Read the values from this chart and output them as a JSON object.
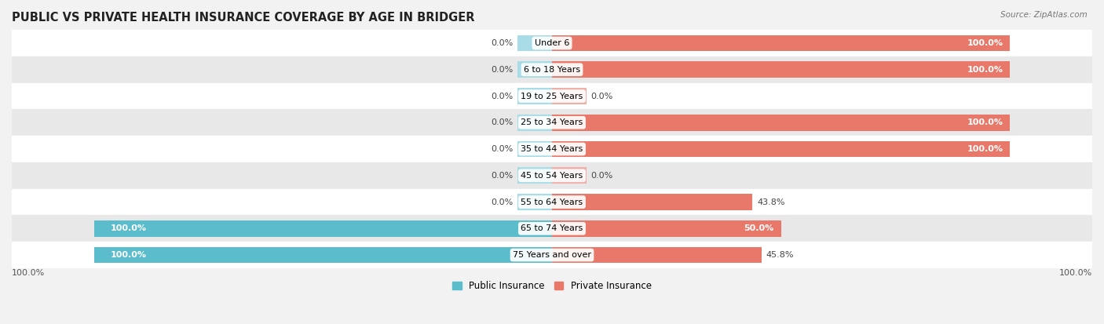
{
  "title": "PUBLIC VS PRIVATE HEALTH INSURANCE COVERAGE BY AGE IN BRIDGER",
  "source": "Source: ZipAtlas.com",
  "categories": [
    "Under 6",
    "6 to 18 Years",
    "19 to 25 Years",
    "25 to 34 Years",
    "35 to 44 Years",
    "45 to 54 Years",
    "55 to 64 Years",
    "65 to 74 Years",
    "75 Years and over"
  ],
  "public_values": [
    0.0,
    0.0,
    0.0,
    0.0,
    0.0,
    0.0,
    0.0,
    100.0,
    100.0
  ],
  "private_values": [
    100.0,
    100.0,
    0.0,
    100.0,
    100.0,
    0.0,
    43.8,
    50.0,
    45.8
  ],
  "public_color": "#5bbccc",
  "private_color": "#e8796a",
  "public_color_light": "#a8dce6",
  "private_color_light": "#f0b0a8",
  "bg_color": "#f2f2f2",
  "row_bg_even": "#ffffff",
  "row_bg_odd": "#e8e8e8",
  "title_fontsize": 10.5,
  "label_fontsize": 8.0,
  "tick_fontsize": 8.0,
  "axis_label_left": "100.0%",
  "axis_label_right": "100.0%",
  "max_val": 100.0,
  "stub_size": 7.5
}
